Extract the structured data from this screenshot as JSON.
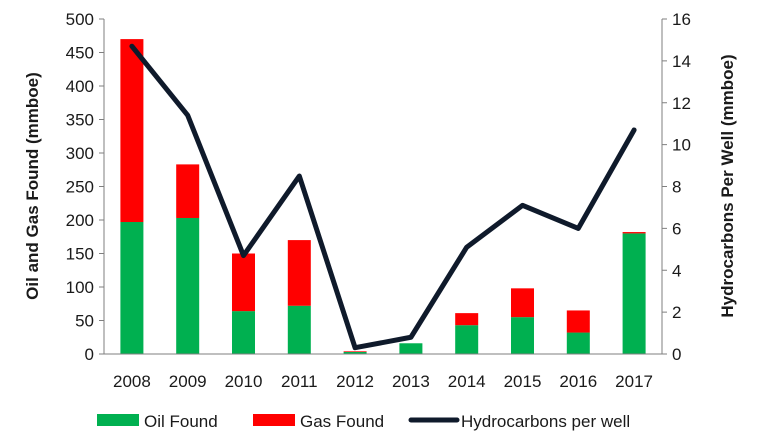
{
  "chart_data": {
    "type": "bar",
    "categories": [
      "2008",
      "2009",
      "2010",
      "2011",
      "2012",
      "2013",
      "2014",
      "2015",
      "2016",
      "2017"
    ],
    "series": [
      {
        "name": "Oil Found",
        "kind": "bar",
        "axis": "left",
        "color": "#00b050",
        "values": [
          197,
          203,
          64,
          72,
          3,
          16,
          43,
          55,
          32,
          180
        ]
      },
      {
        "name": "Gas Found",
        "kind": "bar",
        "axis": "left",
        "color": "#ff0000",
        "values": [
          273,
          80,
          86,
          98,
          1,
          0,
          18,
          43,
          33,
          2
        ]
      },
      {
        "name": "Hydrocarbons per well",
        "kind": "line",
        "axis": "right",
        "color": "#0f1a2b",
        "values": [
          14.7,
          11.4,
          4.7,
          8.5,
          0.3,
          0.8,
          5.1,
          7.1,
          6.0,
          10.7
        ]
      }
    ],
    "stacked": true,
    "ylabel": "Oil and Gas Found (mmboe)",
    "y2label": "Hydrocarbons Per Well (mmboe)",
    "ylim": [
      0,
      500
    ],
    "y2lim": [
      0,
      16
    ],
    "yticks": [
      0,
      50,
      100,
      150,
      200,
      250,
      300,
      350,
      400,
      450,
      500
    ],
    "y2ticks": [
      0,
      2,
      4,
      6,
      8,
      10,
      12,
      14,
      16
    ],
    "grid": false,
    "legend_position": "bottom"
  }
}
